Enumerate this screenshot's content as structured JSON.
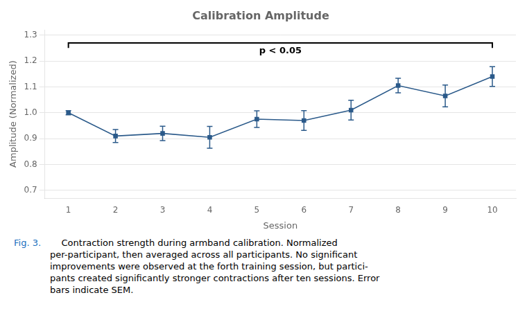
{
  "chart_data": {
    "type": "line",
    "title": "Calibration Amplitude",
    "x_label": "Session",
    "y_label": "Amplitude (Normalized)",
    "x": [
      1,
      2,
      3,
      4,
      5,
      6,
      7,
      8,
      9,
      10
    ],
    "values": [
      1.0,
      0.91,
      0.92,
      0.905,
      0.975,
      0.97,
      1.01,
      1.105,
      1.065,
      1.14
    ],
    "errors": [
      0.008,
      0.025,
      0.028,
      0.042,
      0.032,
      0.038,
      0.038,
      0.028,
      0.042,
      0.038
    ],
    "color": "#2B5A8A",
    "marker": "square",
    "line_style": "solid",
    "xlim": [
      0.5,
      10.5
    ],
    "xticks": [
      1,
      2,
      3,
      4,
      5,
      6,
      7,
      8,
      9,
      10
    ],
    "ylim": [
      0.67,
      1.32
    ],
    "yticks": [
      0.7,
      0.8,
      0.9,
      {
        "value": 1.0,
        "label": "1.0"
      },
      1.1,
      1.2,
      1.3
    ],
    "grid": "y",
    "annotations": [
      {
        "type": "bracket",
        "text": "p < 0.05",
        "x1": 1,
        "x2": 10,
        "y": 1.27,
        "tick": 0.02
      }
    ],
    "caption": {
      "label": "Fig. 3.",
      "label_color": "#1a6fbe",
      "lines": [
        "    Contraction strength during armband calibration. Normalized",
        "per-participant, then averaged across all participants. No significant",
        "improvements were observed at the forth training session, but partici-",
        "pants created significantly stronger contractions after ten sessions. Error",
        "bars indicate SEM."
      ]
    }
  }
}
